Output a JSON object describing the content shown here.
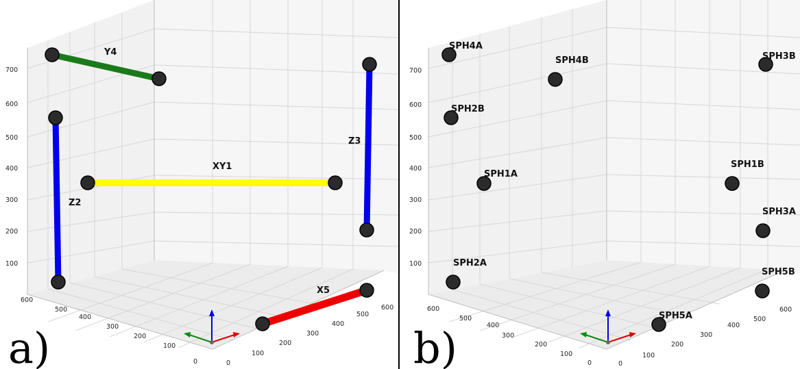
{
  "panels": [
    {
      "id": "a",
      "letter": "a)",
      "z_ticks": [
        "700",
        "600",
        "500",
        "400",
        "300",
        "200",
        "100"
      ],
      "left_floor_ticks": [
        "600",
        "500",
        "400",
        "300",
        "200",
        "100",
        "0"
      ],
      "right_floor_ticks": [
        "0",
        "100",
        "200",
        "300",
        "400",
        "500",
        "600"
      ],
      "points": [
        {
          "label": "",
          "id": "y4-start"
        },
        {
          "label": "",
          "id": "y4-end"
        },
        {
          "label": "",
          "id": "z2-top"
        },
        {
          "label": "",
          "id": "z2-bottom"
        },
        {
          "label": "",
          "id": "xy1-left"
        },
        {
          "label": "",
          "id": "xy1-right"
        },
        {
          "label": "",
          "id": "z3-top"
        },
        {
          "label": "",
          "id": "z3-bottom"
        },
        {
          "label": "",
          "id": "x5-left"
        },
        {
          "label": "",
          "id": "x5-right"
        }
      ],
      "segments": [
        {
          "label": "Y4",
          "color": "#1a7a1a"
        },
        {
          "label": "Z2",
          "color": "#0000ee"
        },
        {
          "label": "XY1",
          "color": "#ffff00"
        },
        {
          "label": "Z3",
          "color": "#0000ee"
        },
        {
          "label": "X5",
          "color": "#ee0000"
        }
      ]
    },
    {
      "id": "b",
      "letter": "b)",
      "z_ticks": [
        "700",
        "600",
        "500",
        "400",
        "300",
        "200",
        "100"
      ],
      "left_floor_ticks": [
        "600",
        "500",
        "400",
        "300",
        "200",
        "100",
        "0"
      ],
      "right_floor_ticks": [
        "0",
        "100",
        "200",
        "300",
        "400",
        "500",
        "600"
      ],
      "points": [
        {
          "label": "SPH4A"
        },
        {
          "label": "SPH4B"
        },
        {
          "label": "SPH3B"
        },
        {
          "label": "SPH2B"
        },
        {
          "label": "SPH1A"
        },
        {
          "label": "SPH1B"
        },
        {
          "label": "SPH3A"
        },
        {
          "label": "SPH2A"
        },
        {
          "label": "SPH5B"
        },
        {
          "label": "SPH5A"
        }
      ]
    }
  ],
  "colors": {
    "axis_x": "#e00000",
    "axis_y": "#118811",
    "axis_z": "#0000dd",
    "marker": "#2b2b2b"
  }
}
